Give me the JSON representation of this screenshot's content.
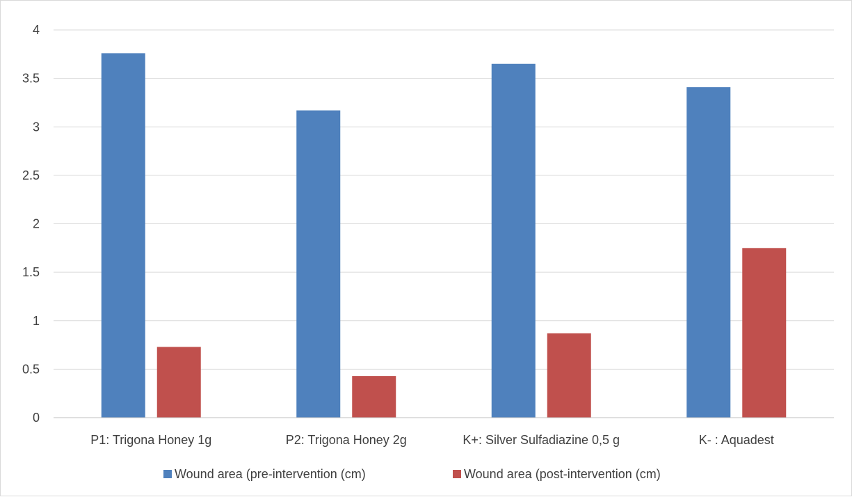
{
  "chart_data": {
    "type": "bar",
    "title": "",
    "xlabel": "",
    "ylabel": "",
    "categories": [
      "P1: Trigona Honey 1g",
      "P2: Trigona Honey 2g",
      "K+: Silver Sulfadiazine 0,5 g",
      "K- : Aquadest"
    ],
    "series": [
      {
        "name": "Wound area (pre-intervention (cm)",
        "color": "#4f81bd",
        "values": [
          3.76,
          3.17,
          3.65,
          3.41
        ]
      },
      {
        "name": "Wound area (post-intervention (cm)",
        "color": "#c0504d",
        "values": [
          0.73,
          0.43,
          0.87,
          1.75
        ]
      }
    ],
    "ylim": [
      0,
      4
    ],
    "yticks": [
      "0",
      "0.5",
      "1",
      "1.5",
      "2",
      "2.5",
      "3",
      "3.5",
      "4"
    ],
    "grid": true,
    "legend_position": "bottom"
  }
}
